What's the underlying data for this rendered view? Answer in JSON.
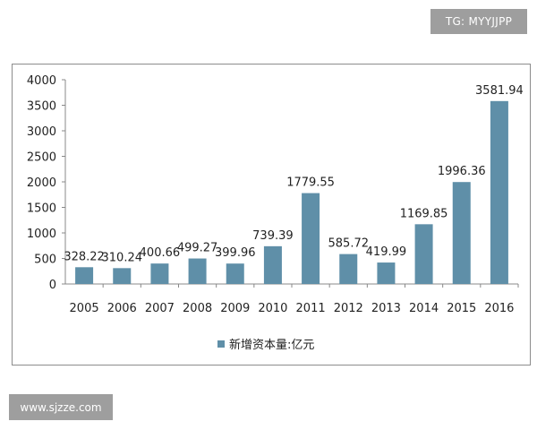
{
  "watermarks": {
    "top": "TG: MYYJJPP",
    "bottom": "www.sjzze.com"
  },
  "colors": {
    "bar": "#5f8fa8",
    "axis": "#888888",
    "tag_bg": "#9e9e9e"
  },
  "chart_data": {
    "type": "bar",
    "title": "",
    "xlabel": "",
    "ylabel": "",
    "categories": [
      "2005",
      "2006",
      "2007",
      "2008",
      "2009",
      "2010",
      "2011",
      "2012",
      "2013",
      "2014",
      "2015",
      "2016"
    ],
    "series": [
      {
        "name": "新增资本量:亿元",
        "values": [
          328.22,
          310.24,
          400.66,
          499.27,
          399.96,
          739.39,
          1779.55,
          585.72,
          419.99,
          1169.85,
          1996.36,
          3581.94
        ],
        "labels": [
          "328.22",
          "310.24",
          "400.66",
          "499.27",
          "399.96",
          "739.39",
          "1779.55",
          "585.72",
          "419.99",
          "1169.85",
          "1996.36",
          "3581.94"
        ]
      }
    ],
    "ylim": [
      0,
      4000
    ],
    "yticks": [
      0,
      500,
      1000,
      1500,
      2000,
      2500,
      3000,
      3500,
      4000
    ],
    "legend_position": "bottom",
    "grid": false
  }
}
